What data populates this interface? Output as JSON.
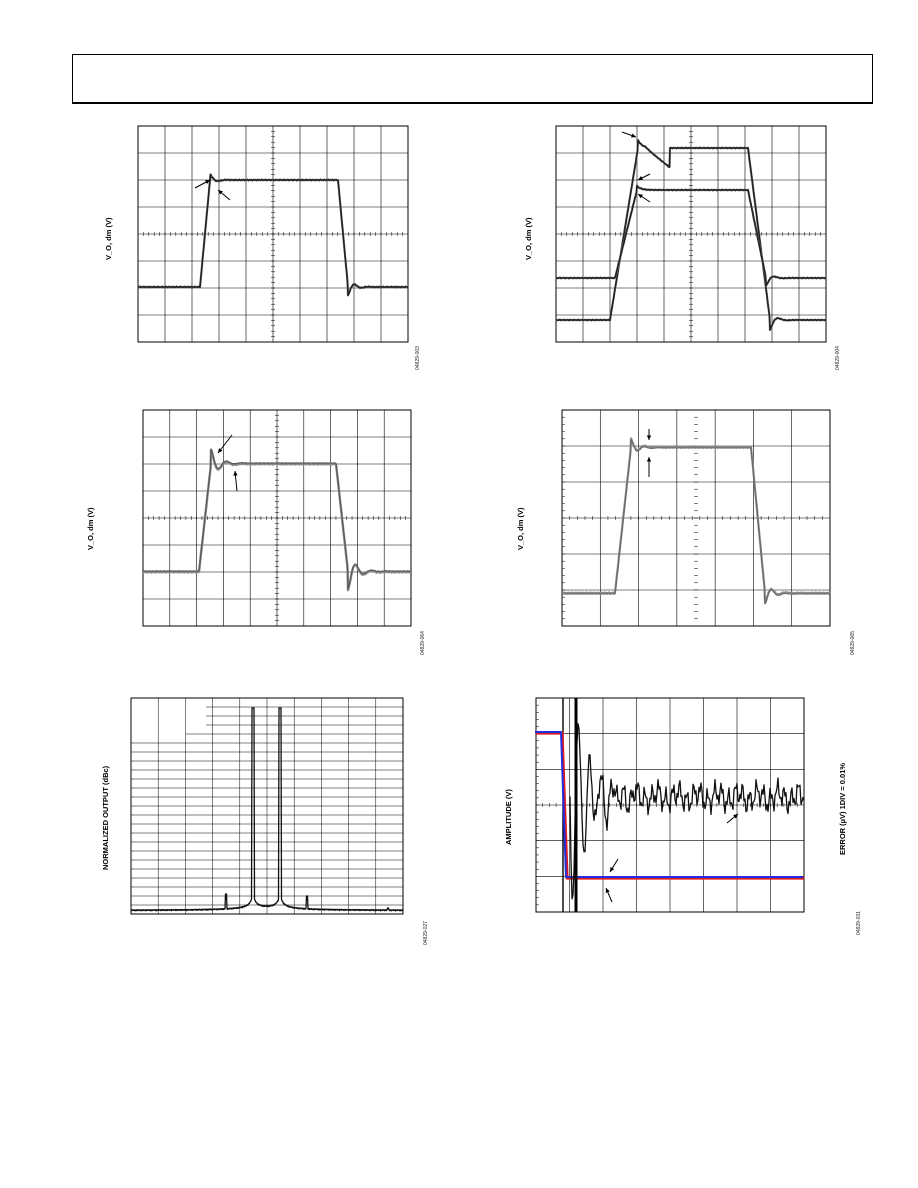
{
  "header": {
    "text": ""
  },
  "figures": [
    {
      "id": "fig-1",
      "ylabel": "V_O, dm (V)",
      "figid": "04829-003"
    },
    {
      "id": "fig-2",
      "ylabel": "V_O, dm (V)",
      "figid": "04829-004"
    },
    {
      "id": "fig-3",
      "ylabel": "V_O, dm (V)",
      "figid": "04829-064"
    },
    {
      "id": "fig-4",
      "ylabel": "V_O, dm (V)",
      "figid": "04829-065"
    },
    {
      "id": "fig-5",
      "ylabel": "NORMALIZED OUTPUT (dBc)",
      "figid": "04829-027"
    },
    {
      "id": "fig-6",
      "ylabel": "AMPLITUDE (V)",
      "rlabel": "ERROR (µV) 1DIV = 0.01%",
      "figid": "04829-031"
    }
  ],
  "colors": {
    "trace_dark": "#222222",
    "trace_gray": "#8a8a8a",
    "trace_blue": "#1f2fe0",
    "trace_red": "#e01a1a"
  }
}
